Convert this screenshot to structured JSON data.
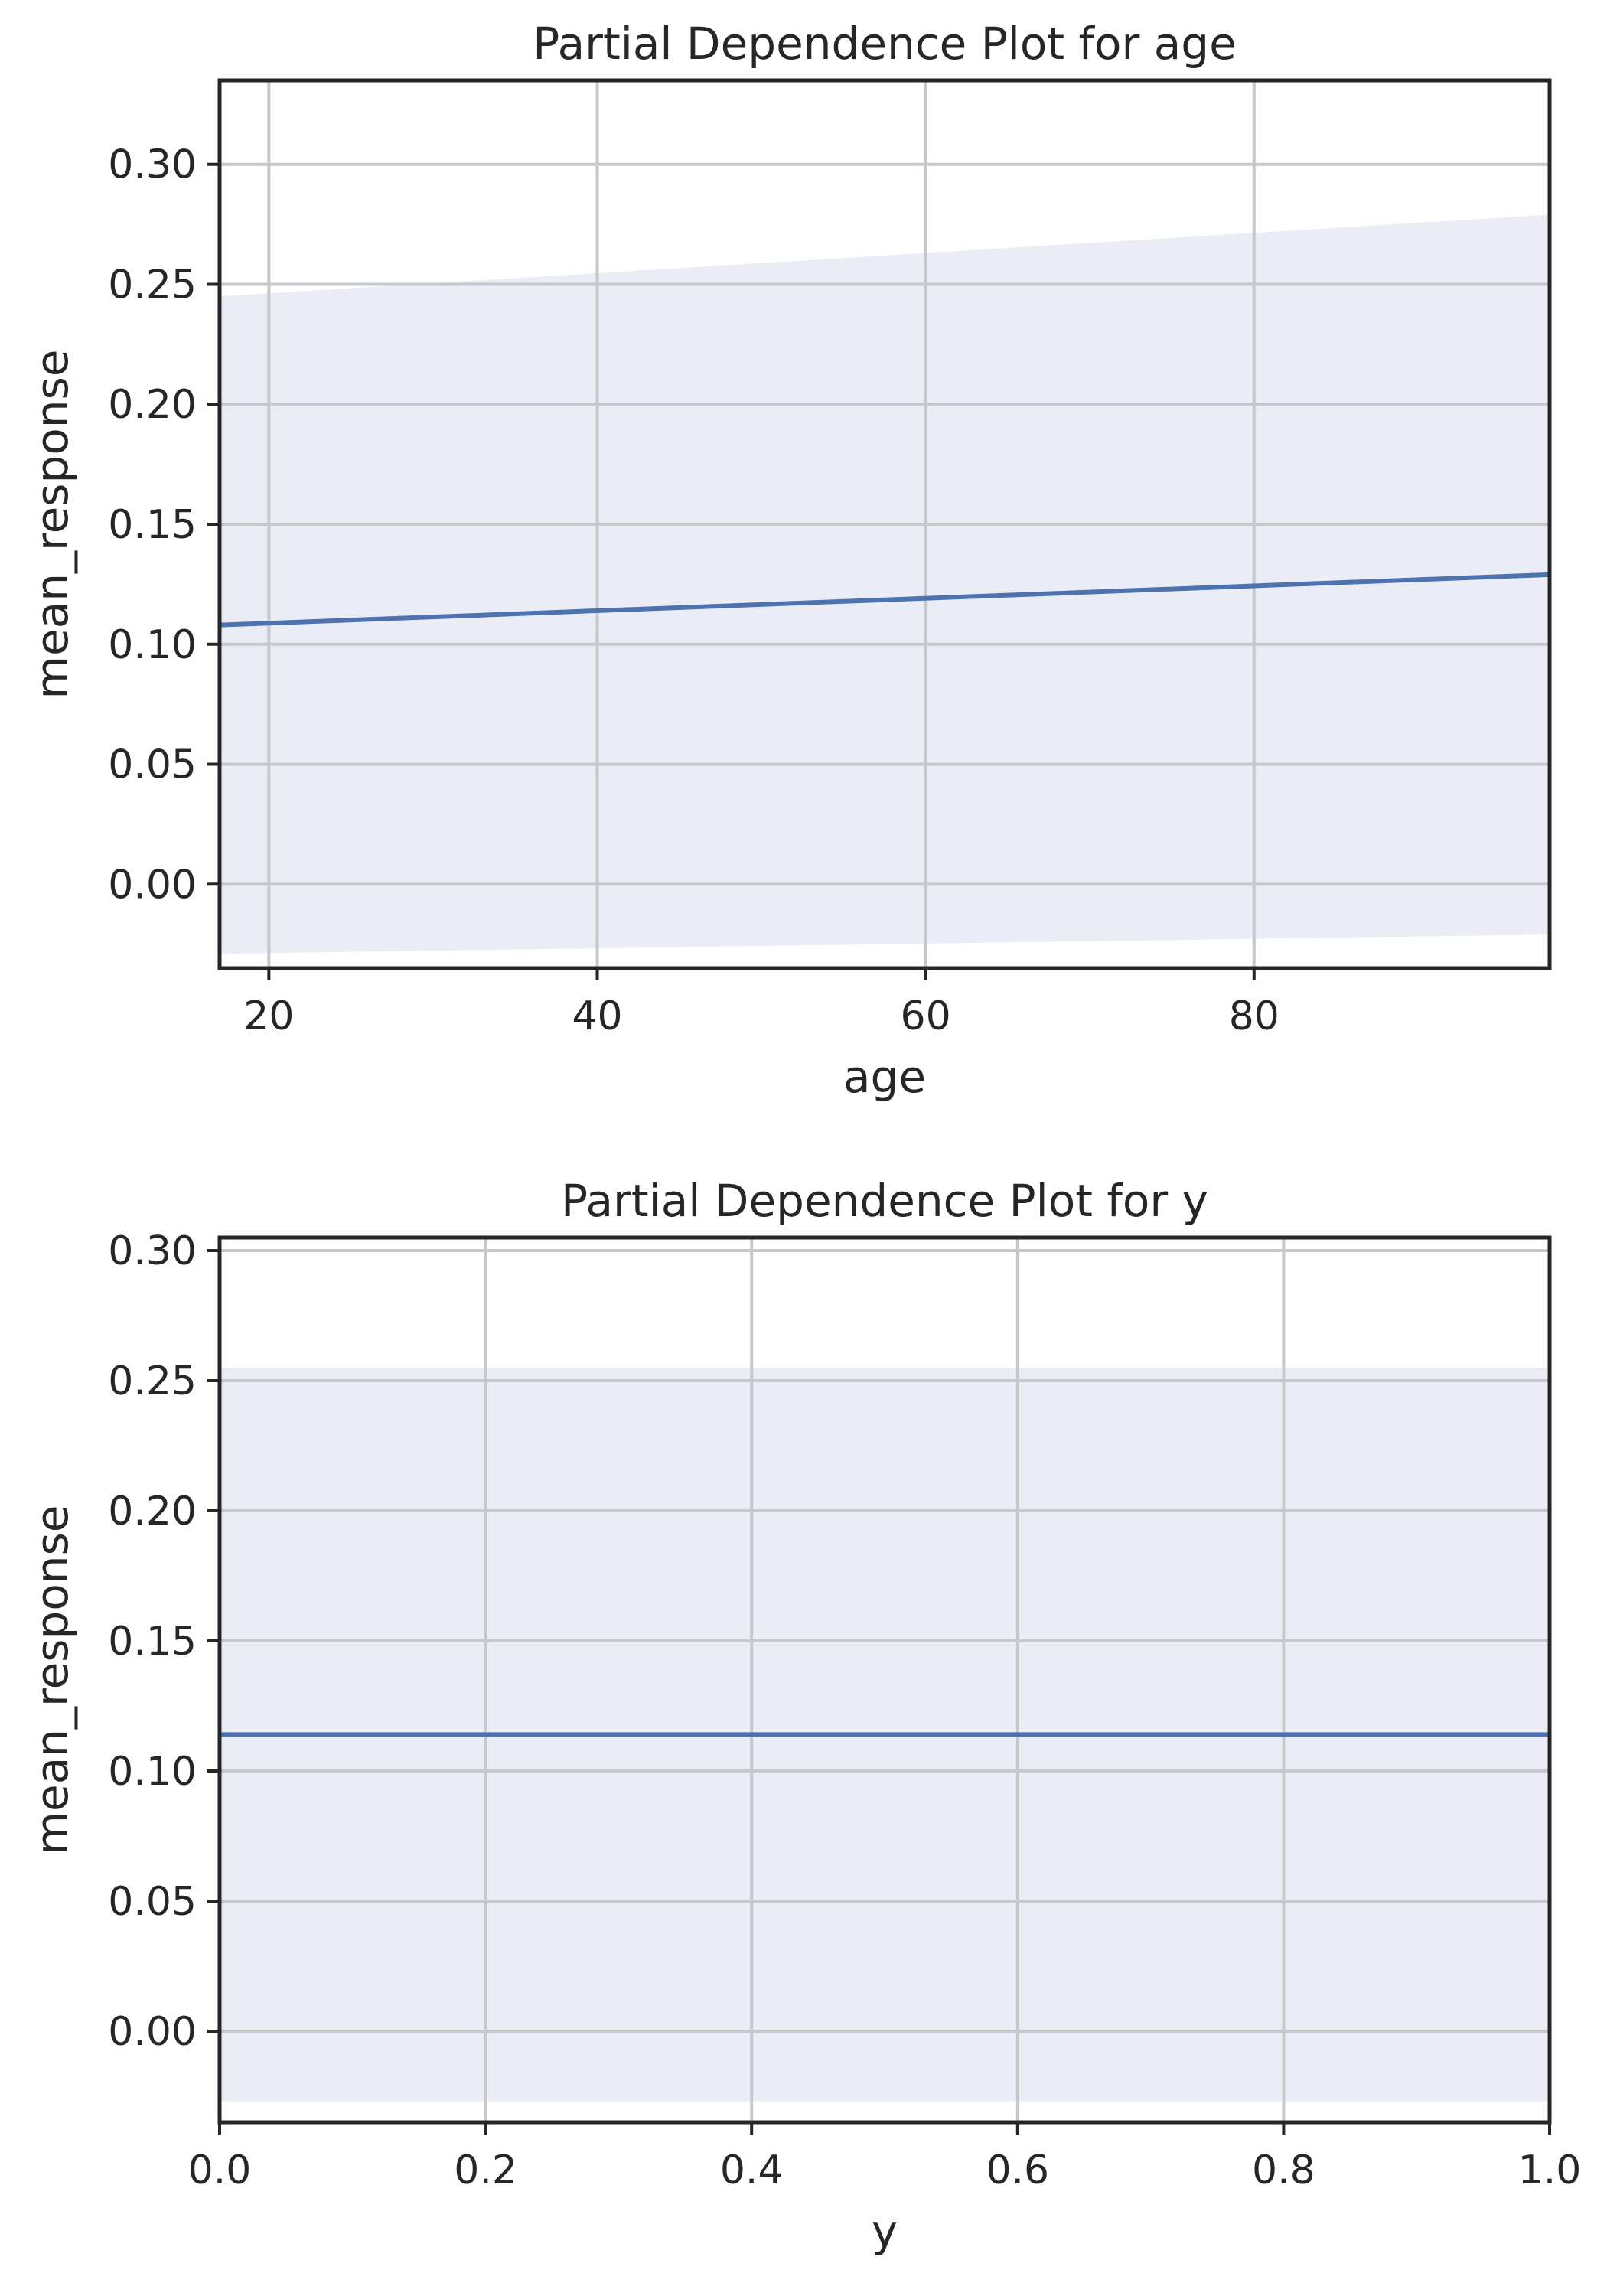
{
  "chart_data": [
    {
      "type": "line",
      "title": "Partial Dependence Plot for age",
      "xlabel": "age",
      "ylabel": "mean_response",
      "xlim": [
        17,
        98
      ],
      "ylim": [
        -0.035,
        0.335
      ],
      "x_ticks": [
        20,
        40,
        60,
        80
      ],
      "x_tick_labels": [
        "20",
        "40",
        "60",
        "80"
      ],
      "y_ticks": [
        0.0,
        0.05,
        0.1,
        0.15,
        0.2,
        0.25,
        0.3
      ],
      "y_tick_labels": [
        "0.00",
        "0.05",
        "0.10",
        "0.15",
        "0.20",
        "0.25",
        "0.30"
      ],
      "grid": true,
      "legend": "none",
      "series": [
        {
          "x": [
            17,
            98
          ],
          "y": [
            0.108,
            0.129
          ],
          "lower": [
            -0.029,
            -0.021
          ],
          "upper": [
            0.245,
            0.279
          ]
        }
      ]
    },
    {
      "type": "line",
      "title": "Partial Dependence Plot for y",
      "xlabel": "y",
      "ylabel": "mean_response",
      "xlim": [
        0.0,
        1.0
      ],
      "ylim": [
        -0.035,
        0.305
      ],
      "x_ticks": [
        0.0,
        0.2,
        0.4,
        0.6,
        0.8,
        1.0
      ],
      "x_tick_labels": [
        "0.0",
        "0.2",
        "0.4",
        "0.6",
        "0.8",
        "1.0"
      ],
      "y_ticks": [
        0.0,
        0.05,
        0.1,
        0.15,
        0.2,
        0.25,
        0.3
      ],
      "y_tick_labels": [
        "0.00",
        "0.05",
        "0.10",
        "0.15",
        "0.20",
        "0.25",
        "0.30"
      ],
      "grid": true,
      "legend": "none",
      "series": [
        {
          "x": [
            0.0,
            1.0
          ],
          "y": [
            0.114,
            0.114
          ],
          "lower": [
            -0.027,
            -0.027
          ],
          "upper": [
            0.255,
            0.255
          ]
        }
      ]
    }
  ],
  "colors": {
    "line": "#4c72b0",
    "band": "#eaedf5",
    "grid": "#c8c8cc",
    "spine": "#262626",
    "text": "#262626"
  }
}
